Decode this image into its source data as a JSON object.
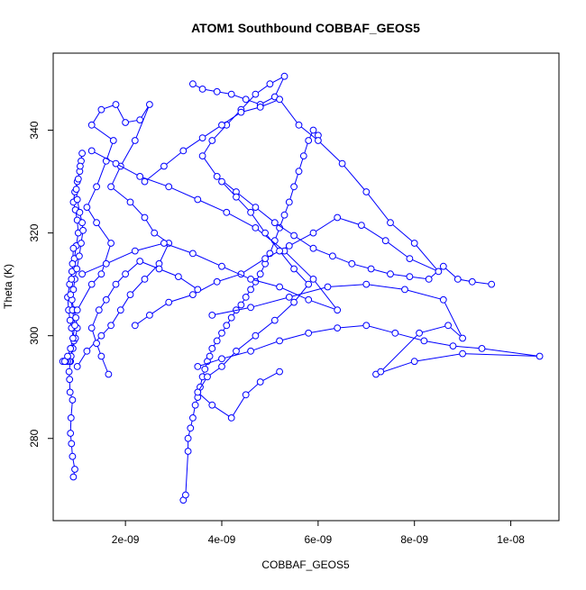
{
  "chart_data": {
    "type": "line",
    "title": "ATOM1 Southbound COBBAF_GEOS5",
    "xlabel": "COBBAF_GEOS5",
    "ylabel": "Theta (K)",
    "xlim": [
      5e-10,
      1.1e-08
    ],
    "ylim": [
      264,
      355
    ],
    "x_ticks": [
      {
        "value": 2e-09,
        "label": "2e-09"
      },
      {
        "value": 4e-09,
        "label": "4e-09"
      },
      {
        "value": 6e-09,
        "label": "6e-09"
      },
      {
        "value": 8e-09,
        "label": "8e-09"
      },
      {
        "value": 1e-08,
        "label": "1e-08"
      }
    ],
    "y_ticks": [
      {
        "value": 280,
        "label": "280"
      },
      {
        "value": 300,
        "label": "300"
      },
      {
        "value": 320,
        "label": "320"
      },
      {
        "value": 340,
        "label": "340"
      }
    ],
    "grid": false,
    "legend": "none",
    "series": [
      {
        "color": "#0000ff",
        "marker": "open-circle",
        "x": [
          9.2e-10,
          9.5e-10,
          9e-10,
          8.8e-10,
          8.6e-10,
          8.7e-10,
          9e-10,
          8.5e-10,
          8.4e-10,
          8.3e-10,
          8.6e-10,
          8.9e-10,
          9.3e-10,
          8.8e-10,
          8.5e-10,
          8.2e-10,
          8e-10,
          8.4e-10,
          8.9e-10,
          9.4e-10,
          9.8e-10,
          1.02e-09,
          1e-09,
          9.6e-10,
          9.2e-10,
          9.5e-10,
          1e-09,
          1.05e-09,
          1.08e-09,
          1.1e-09,
          1.06e-09,
          1.02e-09,
          9.8e-10,
          1e-09,
          1.05e-09,
          1.1e-09,
          1.12e-09,
          1.08e-09,
          1.04e-09,
          9.9e-10,
          9.5e-10,
          9.2e-10,
          8.9e-10,
          9.3e-10,
          9.7e-10,
          1e-09,
          9.6e-10,
          9.1e-10,
          8.7e-10,
          8.4e-10,
          8e-10,
          7.6e-10,
          7.2e-10,
          7e-10,
          7.4e-10,
          8e-10,
          8.6e-10,
          9.1e-10,
          9.5e-10,
          9e-10,
          8.6e-10,
          8.8e-10,
          9e-10,
          9.2e-10
        ],
        "y": [
          272.5,
          274.0,
          276.5,
          279.0,
          281.0,
          284.0,
          287.5,
          289.0,
          291.5,
          293.0,
          295.0,
          297.5,
          299.0,
          301.5,
          303.0,
          305.0,
          307.5,
          310.0,
          312.5,
          315.0,
          317.5,
          320.0,
          322.5,
          324.5,
          326.0,
          328.0,
          330.0,
          332.0,
          334.0,
          335.5,
          333.0,
          330.5,
          328.5,
          326.5,
          324.0,
          322.0,
          320.5,
          318.0,
          315.5,
          313.0,
          311.0,
          309.0,
          307.0,
          305.0,
          303.5,
          301.5,
          299.5,
          297.5,
          296.0,
          295.0,
          295.0,
          295.0,
          295.0,
          295.0,
          295.0,
          296.0,
          297.5,
          299.5,
          302.0,
          305.0,
          308.0,
          311.0,
          314.0,
          317.0
        ]
      },
      {
        "color": "#0000ff",
        "marker": "open-circle",
        "x": [
          1e-09,
          1.3e-09,
          1.5e-09,
          1.7e-09,
          1.4e-09,
          1.2e-09,
          1.4e-09,
          1.6e-09,
          1.75e-09,
          1.3e-09,
          1.5e-09,
          1.8e-09,
          2e-09,
          2.3e-09,
          2.5e-09,
          2.2e-09,
          1.9e-09,
          1.7e-09,
          2.1e-09,
          2.4e-09,
          2.6e-09,
          2.9e-09,
          2.7e-09,
          2.4e-09,
          2.1e-09,
          1.9e-09,
          1.7e-09,
          1.5e-09,
          1.2e-09,
          1e-09
        ],
        "y": [
          305.0,
          310.0,
          312.0,
          318.0,
          322.0,
          325.0,
          329.0,
          334.0,
          338.0,
          341.0,
          344.0,
          345.0,
          341.5,
          342.0,
          345.0,
          338.0,
          333.0,
          329.0,
          326.0,
          323.0,
          320.0,
          318.0,
          314.0,
          311.0,
          308.0,
          305.0,
          302.0,
          300.0,
          297.0,
          294.0
        ]
      },
      {
        "color": "#0000ff",
        "marker": "open-circle",
        "x": [
          3.2e-09,
          3.25e-09,
          3.3e-09,
          3.3e-09,
          3.35e-09,
          3.4e-09,
          3.45e-09,
          3.5e-09,
          3.55e-09,
          3.6e-09,
          3.65e-09,
          3.7e-09,
          3.75e-09,
          3.8e-09,
          3.9e-09,
          4e-09,
          4.1e-09,
          4.2e-09,
          4.3e-09,
          4.4e-09,
          4.5e-09,
          4.6e-09,
          4.7e-09,
          4.8e-09,
          4.9e-09,
          5e-09,
          5.1e-09,
          5.2e-09,
          5.3e-09,
          5.4e-09,
          5.5e-09,
          5.6e-09,
          5.7e-09,
          5.8e-09,
          5.9e-09,
          6e-09
        ],
        "y": [
          268.0,
          269.0,
          277.5,
          280.0,
          282.0,
          284.0,
          286.5,
          288.0,
          290.0,
          292.0,
          293.5,
          295.0,
          296.0,
          297.5,
          299.0,
          300.5,
          302.0,
          303.5,
          305.0,
          306.0,
          307.5,
          309.0,
          310.5,
          312.0,
          314.0,
          316.0,
          318.5,
          321.0,
          323.5,
          326.0,
          329.0,
          332.0,
          335.0,
          338.0,
          340.0,
          339.0
        ]
      },
      {
        "color": "#0000ff",
        "marker": "open-circle",
        "x": [
          3.4e-09,
          3.6e-09,
          3.9e-09,
          4.2e-09,
          4.5e-09,
          4.8e-09,
          5.1e-09,
          5.3e-09,
          5e-09,
          4.7e-09,
          4.4e-09,
          4.1e-09,
          3.8e-09,
          3.6e-09,
          3.9e-09,
          4.3e-09,
          4.7e-09,
          5.1e-09,
          5.5e-09,
          5.9e-09,
          6.3e-09,
          6.7e-09,
          7.1e-09,
          7.5e-09,
          7.9e-09,
          8.3e-09,
          8.6e-09,
          8.9e-09,
          9.2e-09,
          9.6e-09
        ],
        "y": [
          349.0,
          348.0,
          347.5,
          347.0,
          346.0,
          345.0,
          346.5,
          350.5,
          349.0,
          347.0,
          344.0,
          341.0,
          338.0,
          335.0,
          331.0,
          328.0,
          325.0,
          322.0,
          319.5,
          317.0,
          315.5,
          314.0,
          313.0,
          312.0,
          311.5,
          311.0,
          313.5,
          311.0,
          310.5,
          310.0
        ]
      },
      {
        "color": "#0000ff",
        "marker": "open-circle",
        "x": [
          3.5e-09,
          4e-09,
          4.6e-09,
          5.2e-09,
          5.8e-09,
          6.4e-09,
          7e-09,
          7.6e-09,
          8.2e-09,
          8.8e-09,
          9.4e-09,
          1.06e-08,
          9e-09,
          8e-09,
          7.2e-09,
          7.3e-09,
          8.1e-09,
          8.7e-09,
          9e-09,
          8.6e-09,
          7.8e-09,
          7e-09,
          6.2e-09,
          5.4e-09,
          4.6e-09,
          3.8e-09
        ],
        "y": [
          294.0,
          295.5,
          297.0,
          299.0,
          300.5,
          301.5,
          302.0,
          300.5,
          299.0,
          298.0,
          297.5,
          296.0,
          296.5,
          295.0,
          292.5,
          293.0,
          300.5,
          302.0,
          299.5,
          307.0,
          309.0,
          310.0,
          309.5,
          307.5,
          305.5,
          304.0
        ]
      },
      {
        "color": "#0000ff",
        "marker": "open-circle",
        "x": [
          2.4e-09,
          2.8e-09,
          3.2e-09,
          3.6e-09,
          4e-09,
          4.4e-09,
          4.8e-09,
          5.2e-09,
          5.6e-09,
          6e-09,
          6.5e-09,
          7e-09,
          7.5e-09,
          8e-09,
          8.5e-09,
          7.9e-09,
          7.4e-09,
          6.9e-09,
          6.4e-09,
          5.9e-09,
          5.4e-09,
          4.9e-09,
          4.4e-09,
          3.9e-09,
          3.4e-09,
          2.9e-09,
          2.5e-09,
          2.2e-09
        ],
        "y": [
          330.0,
          333.0,
          336.0,
          338.5,
          341.0,
          343.5,
          344.5,
          346.0,
          341.0,
          338.0,
          333.5,
          328.0,
          322.0,
          318.0,
          312.5,
          315.0,
          318.5,
          321.5,
          323.0,
          320.0,
          317.5,
          315.0,
          312.0,
          310.5,
          308.0,
          306.5,
          304.0,
          302.0
        ]
      },
      {
        "color": "#0000ff",
        "marker": "open-circle",
        "x": [
          1.1e-09,
          1.6e-09,
          2.2e-09,
          2.8e-09,
          3.4e-09,
          4e-09,
          4.6e-09,
          5.2e-09,
          5.8e-09,
          6.4e-09,
          5.9e-09,
          5.3e-09,
          4.7e-09,
          4.1e-09,
          3.5e-09,
          2.9e-09,
          2.3e-09,
          1.8e-09,
          1.3e-09
        ],
        "y": [
          312.0,
          314.0,
          316.5,
          318.0,
          316.0,
          313.5,
          311.0,
          309.5,
          307.0,
          305.0,
          311.0,
          316.5,
          321.0,
          324.0,
          326.5,
          329.0,
          331.0,
          333.5,
          336.0
        ]
      },
      {
        "color": "#0000ff",
        "marker": "open-circle",
        "x": [
          4e-09,
          4.3e-09,
          4.6e-09,
          4.9e-09,
          5.2e-09,
          5.5e-09,
          5.8e-09,
          5.5e-09,
          5.1e-09,
          4.7e-09,
          4.3e-09,
          4e-09,
          3.7e-09,
          3.5e-09,
          3.8e-09,
          4.2e-09,
          4.5e-09,
          4.8e-09,
          5.2e-09
        ],
        "y": [
          330.0,
          327.0,
          324.0,
          320.0,
          316.5,
          313.0,
          310.0,
          306.5,
          303.0,
          300.0,
          297.0,
          294.0,
          292.0,
          289.0,
          286.5,
          284.0,
          288.5,
          291.0,
          293.0
        ]
      },
      {
        "color": "#0000ff",
        "marker": "open-circle",
        "x": [
          1.65e-09,
          1.5e-09,
          1.4e-09,
          1.3e-09,
          1.45e-09,
          1.6e-09,
          1.8e-09,
          2e-09,
          2.3e-09,
          2.7e-09,
          3.1e-09,
          3.5e-09
        ],
        "y": [
          292.5,
          296.0,
          298.5,
          301.5,
          305.0,
          307.0,
          310.0,
          312.0,
          314.5,
          313.0,
          311.5,
          309.0
        ]
      }
    ]
  }
}
